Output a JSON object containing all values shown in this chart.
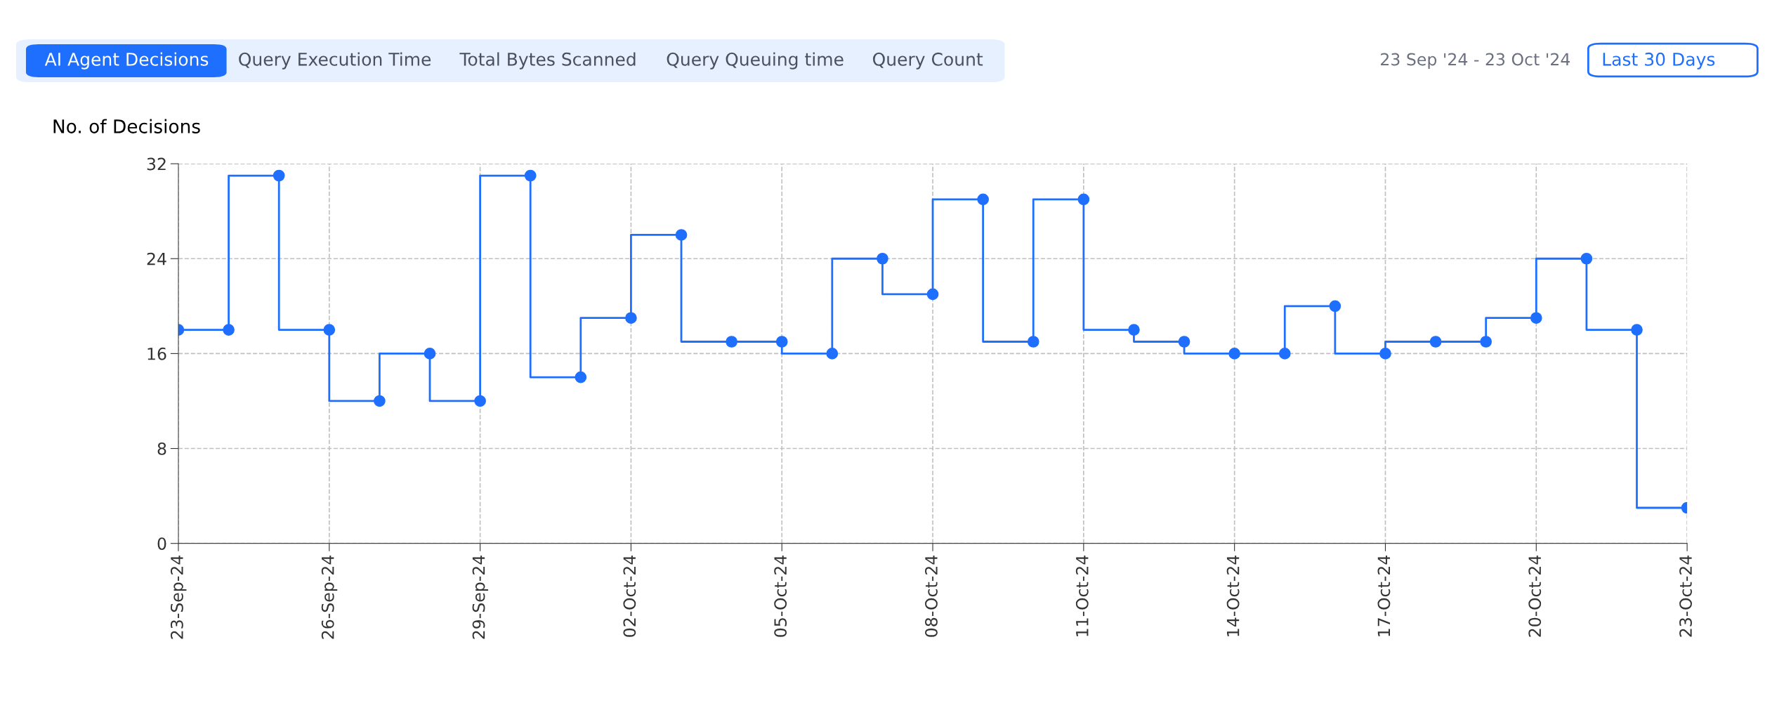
{
  "chart_data": {
    "type": "step",
    "ylabel": "No. of Decisions",
    "annotations": [
      "AI Agent Decisions",
      "Query Execution Time",
      "Total Bytes Scanned",
      "Query Queuing time",
      "Query Count",
      "23 Sep '24 - 23 Oct '24",
      "Last 30 Days"
    ],
    "x": [
      "2024-09-23",
      "2024-09-24",
      "2024-09-25",
      "2024-09-26",
      "2024-09-27",
      "2024-09-28",
      "2024-09-29",
      "2024-09-30",
      "2024-10-01",
      "2024-10-02",
      "2024-10-03",
      "2024-10-04",
      "2024-10-05",
      "2024-10-06",
      "2024-10-07",
      "2024-10-08",
      "2024-10-09",
      "2024-10-10",
      "2024-10-11",
      "2024-10-12",
      "2024-10-13",
      "2024-10-14",
      "2024-10-15",
      "2024-10-16",
      "2024-10-17",
      "2024-10-18",
      "2024-10-19",
      "2024-10-20",
      "2024-10-21",
      "2024-10-22",
      "2024-10-23"
    ],
    "series": [
      {
        "color": "#1f6fff",
        "values": [
          18,
          18,
          31,
          18,
          12,
          16,
          12,
          31,
          14,
          19,
          26,
          17,
          17,
          16,
          24,
          21,
          29,
          17,
          29,
          18,
          17,
          16,
          16,
          20,
          16,
          17,
          17,
          19,
          24,
          18,
          3
        ]
      }
    ],
    "xlim": [
      "2024-09-23",
      "2024-10-23"
    ],
    "xticks": [
      {
        "value": "2024-09-23",
        "label": "23-Sep-24"
      },
      {
        "value": "2024-09-26",
        "label": "26-Sep-24"
      },
      {
        "value": "2024-09-29",
        "label": "29-Sep-24"
      },
      {
        "value": "2024-10-02",
        "label": "02-Oct-24"
      },
      {
        "value": "2024-10-05",
        "label": "05-Oct-24"
      },
      {
        "value": "2024-10-08",
        "label": "08-Oct-24"
      },
      {
        "value": "2024-10-11",
        "label": "11-Oct-24"
      },
      {
        "value": "2024-10-14",
        "label": "14-Oct-24"
      },
      {
        "value": "2024-10-17",
        "label": "17-Oct-24"
      },
      {
        "value": "2024-10-20",
        "label": "20-Oct-24"
      },
      {
        "value": "2024-10-23",
        "label": "23-Oct-24"
      }
    ],
    "ylim": [
      0,
      32
    ],
    "yticks": [
      0,
      8,
      16,
      24,
      32
    ],
    "grid": true,
    "marker": "circle",
    "line_style": "solid",
    "legend": false
  }
}
